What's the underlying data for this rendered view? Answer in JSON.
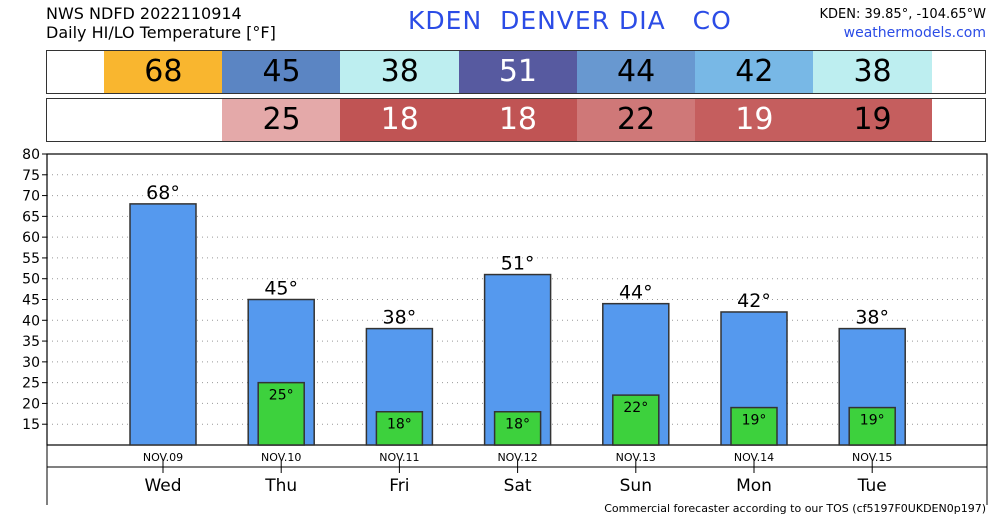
{
  "header": {
    "line1": "NWS NDFD 2022110914",
    "line2": "Daily HI/LO Temperature [°F]",
    "station_code": "KDEN",
    "station_name": "DENVER DIA",
    "state": "CO",
    "coords": "KDEN: 39.85°, -104.65°W",
    "site": "weathermodels.com"
  },
  "hi_strip": [
    {
      "value": "68",
      "color": "#f9b62f",
      "text_color": "#000000"
    },
    {
      "value": "45",
      "color": "#5b85c3",
      "text_color": "#000000"
    },
    {
      "value": "38",
      "color": "#bdeef0",
      "text_color": "#000000"
    },
    {
      "value": "51",
      "color": "#575aa0",
      "text_color": "#ffffff"
    },
    {
      "value": "44",
      "color": "#6898d0",
      "text_color": "#000000"
    },
    {
      "value": "42",
      "color": "#78b8e6",
      "text_color": "#000000"
    },
    {
      "value": "38",
      "color": "#bdeef0",
      "text_color": "#000000"
    }
  ],
  "lo_strip": [
    {
      "value": "",
      "color": "#ffffff",
      "text_color": "#000000"
    },
    {
      "value": "25",
      "color": "#e4a9a9",
      "text_color": "#000000"
    },
    {
      "value": "18",
      "color": "#c05454",
      "text_color": "#ffffff"
    },
    {
      "value": "18",
      "color": "#c05454",
      "text_color": "#ffffff"
    },
    {
      "value": "22",
      "color": "#cf7878",
      "text_color": "#000000"
    },
    {
      "value": "19",
      "color": "#c55e5e",
      "text_color": "#ffffff"
    },
    {
      "value": "19",
      "color": "#c55e5e",
      "text_color": "#000000"
    }
  ],
  "chart_data": {
    "type": "bar",
    "categories": [
      "NOV.09",
      "NOV.10",
      "NOV.11",
      "NOV.12",
      "NOV.13",
      "NOV.14",
      "NOV.15"
    ],
    "weekdays": [
      "Wed",
      "Thu",
      "Fri",
      "Sat",
      "Sun",
      "Mon",
      "Tue"
    ],
    "series": [
      {
        "values": [
          68,
          45,
          38,
          51,
          44,
          42,
          38
        ],
        "labels": [
          "68°",
          "45°",
          "38°",
          "51°",
          "44°",
          "42°",
          "38°"
        ],
        "color": "#5599ee"
      },
      {
        "values": [
          null,
          25,
          18,
          18,
          22,
          19,
          19
        ],
        "labels": [
          "",
          "25°",
          "18°",
          "18°",
          "22°",
          "19°",
          "19°"
        ],
        "color": "#3dd13d"
      }
    ],
    "ylim": [
      10,
      80
    ],
    "yticks": [
      15,
      20,
      25,
      30,
      35,
      40,
      45,
      50,
      55,
      60,
      65,
      70,
      75,
      80
    ],
    "grid": true
  },
  "footer": "Commercial forecaster according to our TOS (cf5197F0UKDEN0p197)"
}
